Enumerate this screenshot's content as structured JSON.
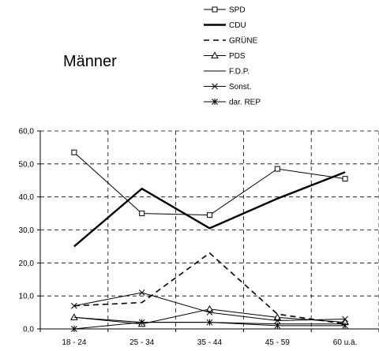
{
  "chart_data": {
    "type": "line",
    "title": "Männer",
    "categories": [
      "18 - 24",
      "25 - 34",
      "35 - 44",
      "45 - 59",
      "60 u.ä."
    ],
    "ylim": [
      0,
      60
    ],
    "yticks": [
      "0,0",
      "10,0",
      "20,0",
      "30,0",
      "40,0",
      "50,0",
      "60,0"
    ],
    "grid": true,
    "legend_position": "top-right",
    "series": [
      {
        "name": "SPD",
        "values": [
          53.5,
          35.0,
          34.5,
          48.5,
          45.5
        ],
        "style": "thin",
        "marker": "square"
      },
      {
        "name": "CDU",
        "values": [
          25.0,
          42.5,
          30.5,
          39.5,
          47.5
        ],
        "style": "thick",
        "marker": "none"
      },
      {
        "name": "GRÜNE",
        "values": [
          7.0,
          8.0,
          23.0,
          4.5,
          1.5
        ],
        "style": "dashed",
        "marker": "none"
      },
      {
        "name": "PDS",
        "values": [
          3.5,
          1.5,
          6.0,
          3.5,
          2.0
        ],
        "style": "thin",
        "marker": "triangle"
      },
      {
        "name": "F.D.P.",
        "values": [
          3.5,
          2.0,
          2.0,
          1.5,
          1.5
        ],
        "style": "thin",
        "marker": "none"
      },
      {
        "name": "Sonst.",
        "values": [
          7.0,
          11.0,
          5.0,
          2.5,
          3.0
        ],
        "style": "thin",
        "marker": "x"
      },
      {
        "name": "dar. REP",
        "values": [
          0.0,
          2.0,
          2.0,
          1.0,
          1.0
        ],
        "style": "thin",
        "marker": "star"
      }
    ]
  }
}
